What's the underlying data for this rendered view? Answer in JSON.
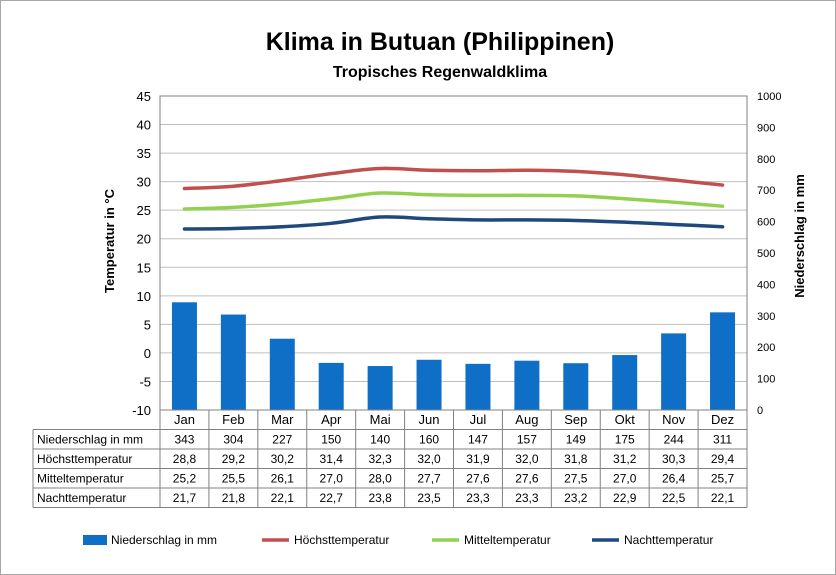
{
  "chart_data": {
    "type": "bar+line",
    "title": "Klima in Butuan (Philippinen)",
    "subtitle": "Tropisches Regenwaldklima",
    "categories": [
      "Jan",
      "Feb",
      "Mar",
      "Apr",
      "Mai",
      "Jun",
      "Jul",
      "Aug",
      "Sep",
      "Okt",
      "Nov",
      "Dez"
    ],
    "y_left": {
      "label": "Temperatur in °C",
      "min": -10,
      "max": 45,
      "ticks": [
        45,
        40,
        35,
        30,
        25,
        20,
        15,
        10,
        5,
        0,
        -5,
        -10
      ]
    },
    "y_right": {
      "label": "Niederschlag in mm",
      "min": 0,
      "max": 1000,
      "ticks": [
        1000,
        900,
        800,
        700,
        600,
        500,
        400,
        300,
        200,
        100,
        0
      ]
    },
    "grid": true,
    "legend_position": "bottom",
    "series": [
      {
        "name": "Niederschlag in mm",
        "kind": "bar",
        "axis": "right",
        "color": "#0f6fc6",
        "values": [
          343,
          304,
          227,
          150,
          140,
          160,
          147,
          157,
          149,
          175,
          244,
          311
        ],
        "labels": [
          "343",
          "304",
          "227",
          "150",
          "140",
          "160",
          "147",
          "157",
          "149",
          "175",
          "244",
          "311"
        ]
      },
      {
        "name": "Höchsttemperatur",
        "kind": "line",
        "axis": "left",
        "color": "#c0504d",
        "values": [
          28.8,
          29.2,
          30.2,
          31.4,
          32.3,
          32.0,
          31.9,
          32.0,
          31.8,
          31.2,
          30.3,
          29.4
        ],
        "labels": [
          "28,8",
          "29,2",
          "30,2",
          "31,4",
          "32,3",
          "32,0",
          "31,9",
          "32,0",
          "31,8",
          "31,2",
          "30,3",
          "29,4"
        ]
      },
      {
        "name": "Mitteltemperatur",
        "kind": "line",
        "axis": "left",
        "color": "#92d050",
        "values": [
          25.2,
          25.5,
          26.1,
          27.0,
          28.0,
          27.7,
          27.6,
          27.6,
          27.5,
          27.0,
          26.4,
          25.7
        ],
        "labels": [
          "25,2",
          "25,5",
          "26,1",
          "27,0",
          "28,0",
          "27,7",
          "27,6",
          "27,6",
          "27,5",
          "27,0",
          "26,4",
          "25,7"
        ]
      },
      {
        "name": "Nachttemperatur",
        "kind": "line",
        "axis": "left",
        "color": "#1f497d",
        "values": [
          21.7,
          21.8,
          22.1,
          22.7,
          23.8,
          23.5,
          23.3,
          23.3,
          23.2,
          22.9,
          22.5,
          22.1
        ],
        "labels": [
          "21,7",
          "21,8",
          "22,1",
          "22,7",
          "23,8",
          "23,5",
          "23,3",
          "23,3",
          "23,2",
          "22,9",
          "22,5",
          "22,1"
        ]
      }
    ]
  }
}
